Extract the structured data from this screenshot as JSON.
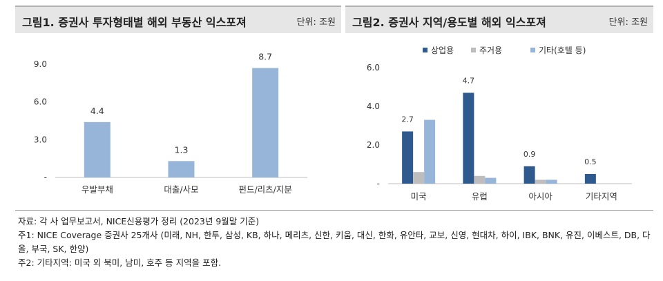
{
  "panel1": {
    "title": "그림1. 증권사 투자형태별 해외 부동산 익스포져",
    "unit": "단위: 조원"
  },
  "panel2": {
    "title": "그림2. 증권사 지역/용도별 해외 익스포져",
    "unit": "단위: 조원"
  },
  "chart_data": [
    {
      "type": "bar",
      "categories": [
        "우발부채",
        "대출/사모",
        "펀드/리츠/지분"
      ],
      "values": [
        4.4,
        1.3,
        8.7
      ],
      "value_labels": [
        "4.4",
        "1.3",
        "8.7"
      ],
      "yticks": [
        "-",
        "3.0",
        "6.0",
        "9.0"
      ],
      "ylim": [
        0,
        9
      ],
      "grid": false,
      "color": "#97b5d8"
    },
    {
      "type": "bar",
      "categories": [
        "미국",
        "유럽",
        "아시아",
        "기타지역"
      ],
      "series": [
        {
          "name": "상업용",
          "values": [
            2.7,
            4.7,
            0.9,
            0.5
          ],
          "color": "#2e5a8e"
        },
        {
          "name": "주거용",
          "values": [
            0.6,
            0.4,
            0.2,
            0.0
          ],
          "color": "#bdbdbd"
        },
        {
          "name": "기타(호텔 등)",
          "values": [
            3.3,
            0.3,
            0.2,
            0.0
          ],
          "color": "#97b5d8"
        }
      ],
      "value_labels": [
        "2.7",
        "4.7",
        "0.9",
        "0.5"
      ],
      "yticks": [
        "-",
        "2.0",
        "4.0",
        "6.0"
      ],
      "ylim": [
        0,
        6
      ],
      "grid": false,
      "legend": "top"
    }
  ],
  "notes": [
    "자료: 각 사 업무보고서, NICE신용평가 정리 (2023년 9월말 기준)",
    "주1: NICE Coverage 증권사 25개사 (미래, NH, 한투, 삼성, KB, 하나, 메리츠, 신한, 키움, 대신, 한화, 유안타, 교보, 신영, 현대차, 하이, IBK, BNK, 유진, 이베스트, DB, 다올, 부국, SK, 한양)",
    "주2: 기타지역: 미국 외 북미, 남미, 호주 등 지역을 포함."
  ]
}
